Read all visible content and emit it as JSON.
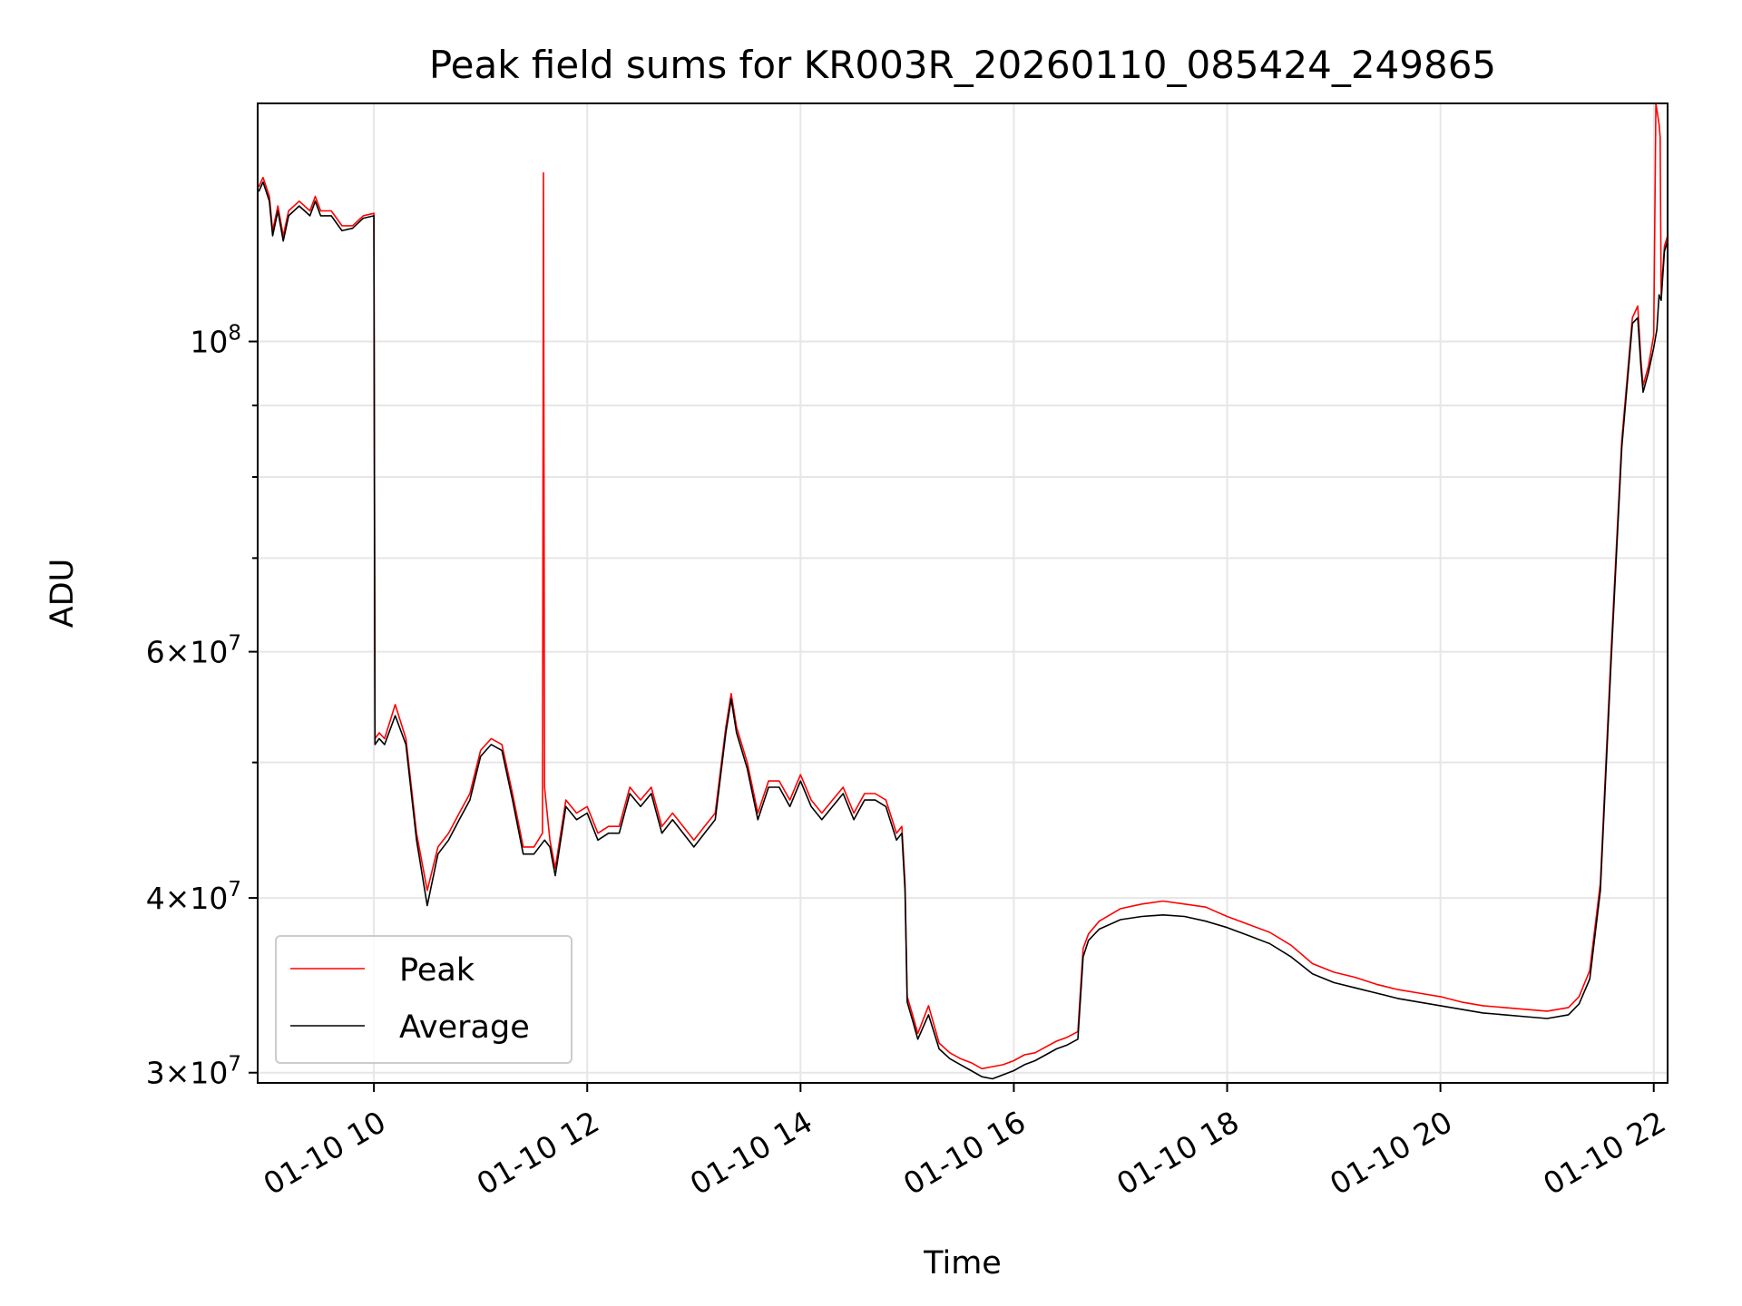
{
  "chart_data": {
    "type": "line",
    "title": "Peak field sums for KR003R_20260110_085424_249865",
    "xlabel": "Time",
    "ylabel": "ADU",
    "yscale": "log",
    "grid": true,
    "legend_position": "lower-left",
    "x_unit": "hours (10 = 01-10 10:00)",
    "xlim": [
      8.91,
      22.13
    ],
    "ylim": [
      29500000,
      148000000
    ],
    "x_ticks": [
      10,
      12,
      14,
      16,
      18,
      20,
      22
    ],
    "x_tick_labels": [
      "01-10 10",
      "01-10 12",
      "01-10 14",
      "01-10 16",
      "01-10 18",
      "01-10 20",
      "01-10 22"
    ],
    "y_ticks": [
      30000000,
      40000000,
      60000000,
      100000000
    ],
    "y_tick_labels": [
      {
        "base": "3",
        "exp": "7",
        "mult": true
      },
      {
        "base": "4",
        "exp": "7",
        "mult": true
      },
      {
        "base": "6",
        "exp": "7",
        "mult": true
      },
      {
        "base": "10",
        "exp": "8",
        "mult": false
      }
    ],
    "y_minor_ticks": [
      50000000,
      70000000,
      80000000,
      90000000
    ],
    "series": [
      {
        "name": "Peak",
        "color": "#ff0000",
        "points": [
          [
            8.92,
            129000000
          ],
          [
            8.96,
            131000000
          ],
          [
            8.99,
            129000000
          ],
          [
            9.02,
            127000000
          ],
          [
            9.05,
            120000000
          ],
          [
            9.1,
            125000000
          ],
          [
            9.15,
            119000000
          ],
          [
            9.2,
            124000000
          ],
          [
            9.3,
            126000000
          ],
          [
            9.4,
            124000000
          ],
          [
            9.45,
            127000000
          ],
          [
            9.5,
            124000000
          ],
          [
            9.6,
            124000000
          ],
          [
            9.7,
            121000000
          ],
          [
            9.8,
            121000000
          ],
          [
            9.9,
            123000000
          ],
          [
            10.0,
            123500000
          ],
          [
            10.01,
            52000000
          ],
          [
            10.05,
            52500000
          ],
          [
            10.1,
            52000000
          ],
          [
            10.2,
            55000000
          ],
          [
            10.3,
            52000000
          ],
          [
            10.4,
            44500000
          ],
          [
            10.5,
            40500000
          ],
          [
            10.6,
            43500000
          ],
          [
            10.7,
            44500000
          ],
          [
            10.8,
            46000000
          ],
          [
            10.9,
            47500000
          ],
          [
            11.0,
            51000000
          ],
          [
            11.1,
            52000000
          ],
          [
            11.2,
            51500000
          ],
          [
            11.3,
            47500000
          ],
          [
            11.4,
            43500000
          ],
          [
            11.5,
            43500000
          ],
          [
            11.58,
            44500000
          ],
          [
            11.59,
            132000000
          ],
          [
            11.6,
            48000000
          ],
          [
            11.65,
            44000000
          ],
          [
            11.7,
            42000000
          ],
          [
            11.8,
            47000000
          ],
          [
            11.9,
            46000000
          ],
          [
            12.0,
            46500000
          ],
          [
            12.1,
            44500000
          ],
          [
            12.2,
            45000000
          ],
          [
            12.3,
            45000000
          ],
          [
            12.4,
            48000000
          ],
          [
            12.5,
            47000000
          ],
          [
            12.6,
            48000000
          ],
          [
            12.7,
            45000000
          ],
          [
            12.8,
            46000000
          ],
          [
            12.9,
            45000000
          ],
          [
            13.0,
            44000000
          ],
          [
            13.1,
            45000000
          ],
          [
            13.2,
            46000000
          ],
          [
            13.3,
            53000000
          ],
          [
            13.35,
            56000000
          ],
          [
            13.4,
            53000000
          ],
          [
            13.5,
            50000000
          ],
          [
            13.6,
            46000000
          ],
          [
            13.7,
            48500000
          ],
          [
            13.8,
            48500000
          ],
          [
            13.9,
            47000000
          ],
          [
            14.0,
            49000000
          ],
          [
            14.1,
            47000000
          ],
          [
            14.2,
            46000000
          ],
          [
            14.3,
            47000000
          ],
          [
            14.4,
            48000000
          ],
          [
            14.5,
            46000000
          ],
          [
            14.6,
            47500000
          ],
          [
            14.7,
            47500000
          ],
          [
            14.8,
            47000000
          ],
          [
            14.9,
            44500000
          ],
          [
            14.95,
            45000000
          ],
          [
            14.98,
            41000000
          ],
          [
            15.0,
            34000000
          ],
          [
            15.05,
            33000000
          ],
          [
            15.1,
            32000000
          ],
          [
            15.2,
            33500000
          ],
          [
            15.3,
            31500000
          ],
          [
            15.4,
            31000000
          ],
          [
            15.5,
            30700000
          ],
          [
            15.6,
            30500000
          ],
          [
            15.7,
            30200000
          ],
          [
            15.8,
            30300000
          ],
          [
            15.9,
            30400000
          ],
          [
            16.0,
            30600000
          ],
          [
            16.1,
            30900000
          ],
          [
            16.2,
            31000000
          ],
          [
            16.3,
            31300000
          ],
          [
            16.4,
            31600000
          ],
          [
            16.5,
            31800000
          ],
          [
            16.6,
            32100000
          ],
          [
            16.65,
            36800000
          ],
          [
            16.7,
            37700000
          ],
          [
            16.8,
            38500000
          ],
          [
            17.0,
            39300000
          ],
          [
            17.2,
            39600000
          ],
          [
            17.4,
            39800000
          ],
          [
            17.6,
            39600000
          ],
          [
            17.8,
            39400000
          ],
          [
            18.0,
            38800000
          ],
          [
            18.2,
            38300000
          ],
          [
            18.4,
            37800000
          ],
          [
            18.6,
            37000000
          ],
          [
            18.8,
            35900000
          ],
          [
            19.0,
            35400000
          ],
          [
            19.2,
            35100000
          ],
          [
            19.4,
            34700000
          ],
          [
            19.6,
            34400000
          ],
          [
            19.8,
            34200000
          ],
          [
            20.0,
            34000000
          ],
          [
            20.2,
            33700000
          ],
          [
            20.4,
            33500000
          ],
          [
            20.6,
            33400000
          ],
          [
            20.8,
            33300000
          ],
          [
            21.0,
            33200000
          ],
          [
            21.2,
            33400000
          ],
          [
            21.3,
            34000000
          ],
          [
            21.4,
            35500000
          ],
          [
            21.5,
            41000000
          ],
          [
            21.6,
            60000000
          ],
          [
            21.7,
            85000000
          ],
          [
            21.8,
            104000000
          ],
          [
            21.85,
            106000000
          ],
          [
            21.88,
            97000000
          ],
          [
            21.9,
            93000000
          ],
          [
            21.95,
            96000000
          ],
          [
            22.0,
            101000000
          ],
          [
            22.02,
            148000000
          ],
          [
            22.05,
            143000000
          ],
          [
            22.06,
            140000000
          ],
          [
            22.07,
            108000000
          ],
          [
            22.1,
            117000000
          ],
          [
            22.13,
            119000000
          ]
        ]
      },
      {
        "name": "Average",
        "color": "#000000",
        "points": [
          [
            8.92,
            128000000
          ],
          [
            8.96,
            130000000
          ],
          [
            8.99,
            128000000
          ],
          [
            9.02,
            126000000
          ],
          [
            9.05,
            119000000
          ],
          [
            9.1,
            124000000
          ],
          [
            9.15,
            118000000
          ],
          [
            9.2,
            123000000
          ],
          [
            9.3,
            125000000
          ],
          [
            9.4,
            123000000
          ],
          [
            9.45,
            126000000
          ],
          [
            9.5,
            123000000
          ],
          [
            9.6,
            123000000
          ],
          [
            9.7,
            120000000
          ],
          [
            9.8,
            120500000
          ],
          [
            9.9,
            122500000
          ],
          [
            10.0,
            123000000
          ],
          [
            10.01,
            51500000
          ],
          [
            10.05,
            52000000
          ],
          [
            10.1,
            51500000
          ],
          [
            10.2,
            54000000
          ],
          [
            10.3,
            51500000
          ],
          [
            10.4,
            44000000
          ],
          [
            10.5,
            39500000
          ],
          [
            10.6,
            43000000
          ],
          [
            10.7,
            44000000
          ],
          [
            10.8,
            45500000
          ],
          [
            10.9,
            47000000
          ],
          [
            11.0,
            50500000
          ],
          [
            11.1,
            51500000
          ],
          [
            11.2,
            51000000
          ],
          [
            11.3,
            47000000
          ],
          [
            11.4,
            43000000
          ],
          [
            11.5,
            43000000
          ],
          [
            11.6,
            44000000
          ],
          [
            11.65,
            43500000
          ],
          [
            11.7,
            41500000
          ],
          [
            11.8,
            46500000
          ],
          [
            11.9,
            45500000
          ],
          [
            12.0,
            46000000
          ],
          [
            12.1,
            44000000
          ],
          [
            12.2,
            44500000
          ],
          [
            12.3,
            44500000
          ],
          [
            12.4,
            47500000
          ],
          [
            12.5,
            46500000
          ],
          [
            12.6,
            47500000
          ],
          [
            12.7,
            44500000
          ],
          [
            12.8,
            45500000
          ],
          [
            12.9,
            44500000
          ],
          [
            13.0,
            43500000
          ],
          [
            13.1,
            44500000
          ],
          [
            13.2,
            45500000
          ],
          [
            13.3,
            52500000
          ],
          [
            13.35,
            55500000
          ],
          [
            13.4,
            52500000
          ],
          [
            13.5,
            49500000
          ],
          [
            13.6,
            45500000
          ],
          [
            13.7,
            48000000
          ],
          [
            13.8,
            48000000
          ],
          [
            13.9,
            46500000
          ],
          [
            14.0,
            48500000
          ],
          [
            14.1,
            46500000
          ],
          [
            14.2,
            45500000
          ],
          [
            14.3,
            46500000
          ],
          [
            14.4,
            47500000
          ],
          [
            14.5,
            45500000
          ],
          [
            14.6,
            47000000
          ],
          [
            14.7,
            47000000
          ],
          [
            14.8,
            46500000
          ],
          [
            14.9,
            44000000
          ],
          [
            14.95,
            44500000
          ],
          [
            14.98,
            40500000
          ],
          [
            15.0,
            33700000
          ],
          [
            15.05,
            32700000
          ],
          [
            15.1,
            31700000
          ],
          [
            15.2,
            33000000
          ],
          [
            15.3,
            31200000
          ],
          [
            15.4,
            30700000
          ],
          [
            15.5,
            30400000
          ],
          [
            15.6,
            30100000
          ],
          [
            15.7,
            29800000
          ],
          [
            15.8,
            29700000
          ],
          [
            15.9,
            29900000
          ],
          [
            16.0,
            30100000
          ],
          [
            16.1,
            30400000
          ],
          [
            16.2,
            30600000
          ],
          [
            16.3,
            30900000
          ],
          [
            16.4,
            31200000
          ],
          [
            16.5,
            31400000
          ],
          [
            16.6,
            31700000
          ],
          [
            16.65,
            36300000
          ],
          [
            16.7,
            37300000
          ],
          [
            16.8,
            38000000
          ],
          [
            17.0,
            38600000
          ],
          [
            17.2,
            38800000
          ],
          [
            17.4,
            38900000
          ],
          [
            17.6,
            38800000
          ],
          [
            17.8,
            38500000
          ],
          [
            18.0,
            38100000
          ],
          [
            18.2,
            37600000
          ],
          [
            18.4,
            37100000
          ],
          [
            18.6,
            36300000
          ],
          [
            18.8,
            35300000
          ],
          [
            19.0,
            34800000
          ],
          [
            19.2,
            34500000
          ],
          [
            19.4,
            34200000
          ],
          [
            19.6,
            33900000
          ],
          [
            19.8,
            33700000
          ],
          [
            20.0,
            33500000
          ],
          [
            20.2,
            33300000
          ],
          [
            20.4,
            33100000
          ],
          [
            20.6,
            33000000
          ],
          [
            20.8,
            32900000
          ],
          [
            21.0,
            32800000
          ],
          [
            21.2,
            33000000
          ],
          [
            21.3,
            33600000
          ],
          [
            21.4,
            35000000
          ],
          [
            21.5,
            40500000
          ],
          [
            21.6,
            59000000
          ],
          [
            21.7,
            84000000
          ],
          [
            21.8,
            103000000
          ],
          [
            21.85,
            104000000
          ],
          [
            21.88,
            96000000
          ],
          [
            21.9,
            92000000
          ],
          [
            21.95,
            95000000
          ],
          [
            22.0,
            99000000
          ],
          [
            22.03,
            102000000
          ],
          [
            22.05,
            108000000
          ],
          [
            22.07,
            107000000
          ],
          [
            22.1,
            116000000
          ],
          [
            22.13,
            118000000
          ]
        ]
      }
    ]
  }
}
